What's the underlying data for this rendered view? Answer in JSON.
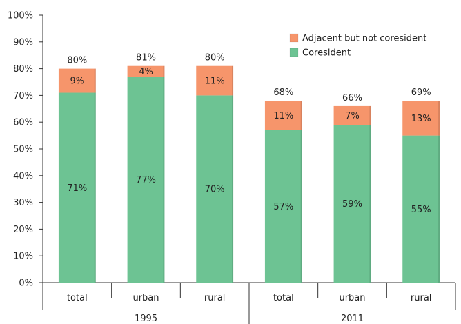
{
  "chart_data": {
    "type": "bar",
    "stacked": true,
    "groups": [
      {
        "label": "1995",
        "categories": [
          "total",
          "urban",
          "rural"
        ]
      },
      {
        "label": "2011",
        "categories": [
          "total",
          "urban",
          "rural"
        ]
      }
    ],
    "series": [
      {
        "name": "Coresident",
        "color": "#6dc393",
        "values": [
          71,
          77,
          70,
          57,
          59,
          55
        ],
        "labels": [
          "71%",
          "77%",
          "70%",
          "57%",
          "59%",
          "55%"
        ]
      },
      {
        "name": "Adjacent but not coresident",
        "color": "#f6956b",
        "values": [
          9,
          4,
          11,
          11,
          7,
          13
        ],
        "labels": [
          "9%",
          "4%",
          "11%",
          "11%",
          "7%",
          "13%"
        ]
      }
    ],
    "totals": [
      80,
      81,
      80,
      68,
      66,
      69
    ],
    "total_labels": [
      "80%",
      "81%",
      "80%",
      "68%",
      "66%",
      "69%"
    ],
    "ylim": [
      0,
      100
    ],
    "yticks": [
      0,
      10,
      20,
      30,
      40,
      50,
      60,
      70,
      80,
      90,
      100
    ],
    "ytick_labels": [
      "0%",
      "10%",
      "20%",
      "30%",
      "40%",
      "50%",
      "60%",
      "70%",
      "80%",
      "90%",
      "100%"
    ],
    "legend_entries": [
      "Adjacent but not coresident",
      "Coresident"
    ],
    "legend_placement": "top-right",
    "grid": false
  }
}
